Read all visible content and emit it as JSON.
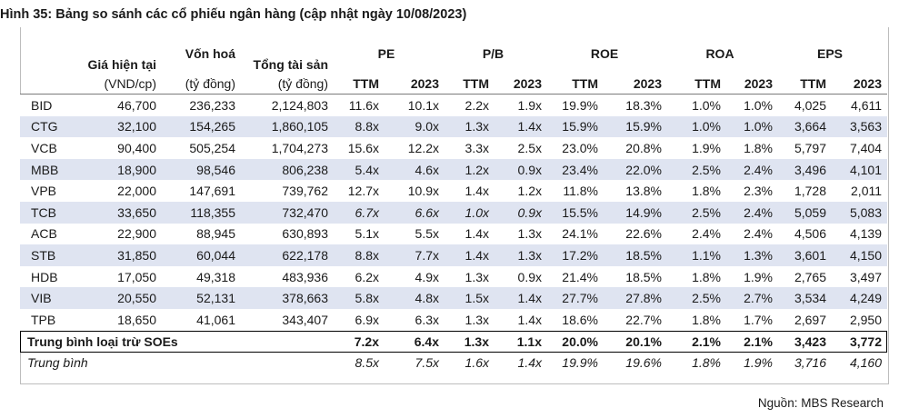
{
  "title": "Hình 35: Bảng so sánh các cổ phiếu ngân hàng (cập nhật ngày 10/08/2023)",
  "headers": {
    "price": "Giá hiện tại",
    "cap": "Vốn hoá",
    "assets": "Tổng tài sản",
    "pe": "PE",
    "pb": "P/B",
    "roe": "ROE",
    "roa": "ROA",
    "eps": "EPS",
    "price_unit": "(VND/cp)",
    "cap_unit": "(tỷ đồng)",
    "assets_unit": "(tỷ đồng)",
    "ttm": "TTM",
    "y2023": "2023"
  },
  "rows": [
    {
      "name": "BID",
      "price": "46,700",
      "cap": "236,233",
      "assets": "2,124,803",
      "pe_ttm": "11.6x",
      "pe_2023": "10.1x",
      "pb_ttm": "2.2x",
      "pb_2023": "1.9x",
      "roe_ttm": "19.9%",
      "roe_2023": "18.3%",
      "roa_ttm": "1.0%",
      "roa_2023": "1.0%",
      "eps_ttm": "4,025",
      "eps_2023": "4,611"
    },
    {
      "name": "CTG",
      "price": "32,100",
      "cap": "154,265",
      "assets": "1,860,105",
      "pe_ttm": "8.8x",
      "pe_2023": "9.0x",
      "pb_ttm": "1.3x",
      "pb_2023": "1.4x",
      "roe_ttm": "15.9%",
      "roe_2023": "15.9%",
      "roa_ttm": "1.0%",
      "roa_2023": "1.0%",
      "eps_ttm": "3,664",
      "eps_2023": "3,563"
    },
    {
      "name": "VCB",
      "price": "90,400",
      "cap": "505,254",
      "assets": "1,704,273",
      "pe_ttm": "15.6x",
      "pe_2023": "12.2x",
      "pb_ttm": "3.3x",
      "pb_2023": "2.5x",
      "roe_ttm": "23.0%",
      "roe_2023": "20.8%",
      "roa_ttm": "1.9%",
      "roa_2023": "1.8%",
      "eps_ttm": "5,797",
      "eps_2023": "7,404"
    },
    {
      "name": "MBB",
      "price": "18,900",
      "cap": "98,546",
      "assets": "806,238",
      "pe_ttm": "5.4x",
      "pe_2023": "4.6x",
      "pb_ttm": "1.2x",
      "pb_2023": "0.9x",
      "roe_ttm": "23.4%",
      "roe_2023": "22.0%",
      "roa_ttm": "2.5%",
      "roa_2023": "2.4%",
      "eps_ttm": "3,496",
      "eps_2023": "4,101"
    },
    {
      "name": "VPB",
      "price": "22,000",
      "cap": "147,691",
      "assets": "739,762",
      "pe_ttm": "12.7x",
      "pe_2023": "10.9x",
      "pb_ttm": "1.4x",
      "pb_2023": "1.2x",
      "roe_ttm": "11.8%",
      "roe_2023": "13.8%",
      "roa_ttm": "1.8%",
      "roa_2023": "2.3%",
      "eps_ttm": "1,728",
      "eps_2023": "2,011"
    },
    {
      "name": "TCB",
      "price": "33,650",
      "cap": "118,355",
      "assets": "732,470",
      "pe_ttm": "6.7x",
      "pe_2023": "6.6x",
      "pb_ttm": "1.0x",
      "pb_2023": "0.9x",
      "roe_ttm": "15.5%",
      "roe_2023": "14.9%",
      "roa_ttm": "2.5%",
      "roa_2023": "2.4%",
      "eps_ttm": "5,059",
      "eps_2023": "5,083",
      "italic_valuation": true
    },
    {
      "name": "ACB",
      "price": "22,900",
      "cap": "88,945",
      "assets": "630,893",
      "pe_ttm": "5.1x",
      "pe_2023": "5.5x",
      "pb_ttm": "1.4x",
      "pb_2023": "1.3x",
      "roe_ttm": "24.1%",
      "roe_2023": "22.6%",
      "roa_ttm": "2.4%",
      "roa_2023": "2.4%",
      "eps_ttm": "4,506",
      "eps_2023": "4,139"
    },
    {
      "name": "STB",
      "price": "31,850",
      "cap": "60,044",
      "assets": "622,178",
      "pe_ttm": "8.8x",
      "pe_2023": "7.7x",
      "pb_ttm": "1.4x",
      "pb_2023": "1.3x",
      "roe_ttm": "17.2%",
      "roe_2023": "18.5%",
      "roa_ttm": "1.1%",
      "roa_2023": "1.3%",
      "eps_ttm": "3,601",
      "eps_2023": "4,150"
    },
    {
      "name": "HDB",
      "price": "17,050",
      "cap": "49,318",
      "assets": "483,936",
      "pe_ttm": "6.2x",
      "pe_2023": "4.9x",
      "pb_ttm": "1.3x",
      "pb_2023": "0.9x",
      "roe_ttm": "21.4%",
      "roe_2023": "18.5%",
      "roa_ttm": "1.8%",
      "roa_2023": "1.9%",
      "eps_ttm": "2,765",
      "eps_2023": "3,497"
    },
    {
      "name": "VIB",
      "price": "20,550",
      "cap": "52,131",
      "assets": "378,663",
      "pe_ttm": "5.8x",
      "pe_2023": "4.8x",
      "pb_ttm": "1.5x",
      "pb_2023": "1.4x",
      "roe_ttm": "27.7%",
      "roe_2023": "27.8%",
      "roa_ttm": "2.5%",
      "roa_2023": "2.7%",
      "eps_ttm": "3,534",
      "eps_2023": "4,249"
    },
    {
      "name": "TPB",
      "price": "18,650",
      "cap": "41,061",
      "assets": "343,407",
      "pe_ttm": "6.9x",
      "pe_2023": "6.3x",
      "pb_ttm": "1.3x",
      "pb_2023": "1.4x",
      "roe_ttm": "18.6%",
      "roe_2023": "22.7%",
      "roa_ttm": "1.8%",
      "roa_2023": "1.7%",
      "eps_ttm": "2,697",
      "eps_2023": "2,950"
    }
  ],
  "avg_ex_soe": {
    "name": "Trung bình loại trừ SOEs",
    "pe_ttm": "7.2x",
    "pe_2023": "6.4x",
    "pb_ttm": "1.3x",
    "pb_2023": "1.1x",
    "roe_ttm": "20.0%",
    "roe_2023": "20.1%",
    "roa_ttm": "2.1%",
    "roa_2023": "2.1%",
    "eps_ttm": "3,423",
    "eps_2023": "3,772"
  },
  "avg": {
    "name": "Trung bình",
    "pe_ttm": "8.5x",
    "pe_2023": "7.5x",
    "pb_ttm": "1.6x",
    "pb_2023": "1.4x",
    "roe_ttm": "19.9%",
    "roe_2023": "19.6%",
    "roa_ttm": "1.8%",
    "roa_2023": "1.9%",
    "eps_ttm": "3,716",
    "eps_2023": "4,160"
  },
  "source": "Nguồn: MBS Research"
}
